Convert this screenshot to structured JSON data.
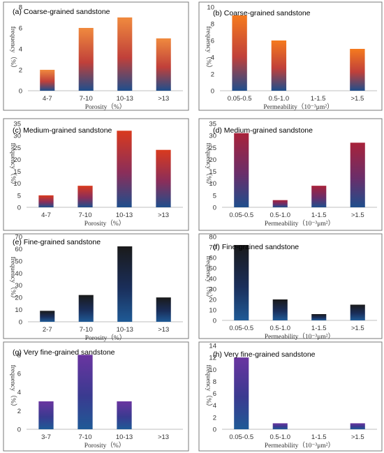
{
  "chart_data": [
    {
      "type": "bar",
      "panel": "(a)",
      "title": "Coarse-grained sandstone",
      "xlabel": "Porosity（%）",
      "ylabel": "frequency（%）",
      "categories": [
        "4-7",
        "7-10",
        "10-13",
        ">13"
      ],
      "values": [
        2,
        6,
        7,
        5
      ],
      "ylim": [
        0,
        8
      ],
      "yticks": [
        0,
        2,
        4,
        6,
        8
      ],
      "grid": false,
      "colors": [
        "#f08a3e",
        "#c0403a",
        "#1f4e8c"
      ]
    },
    {
      "type": "bar",
      "panel": "(b)",
      "title": "Coarse-grained sandstone",
      "xlabel": "Permeability（10⁻³μm²）",
      "ylabel": "frequency（%）",
      "categories": [
        "0.05-0.5",
        "0.5-1.0",
        "1-1.5",
        ">1.5"
      ],
      "values": [
        9,
        6,
        0,
        5
      ],
      "ylim": [
        0,
        10
      ],
      "yticks": [
        0,
        2,
        4,
        6,
        8,
        10
      ],
      "grid": false,
      "colors": [
        "#f57a1e",
        "#c0403a",
        "#1f4e8c"
      ]
    },
    {
      "type": "bar",
      "panel": "(c)",
      "title": "Medium-grained sandstone",
      "xlabel": "Porosity（%）",
      "ylabel": "frequency（%）",
      "categories": [
        "4-7",
        "7-10",
        "10-13",
        ">13"
      ],
      "values": [
        5,
        9,
        32,
        24
      ],
      "ylim": [
        0,
        35
      ],
      "yticks": [
        0,
        5,
        10,
        15,
        20,
        25,
        30,
        35
      ],
      "grid": false,
      "colors": [
        "#d93a1e",
        "#8a2e5a",
        "#1f4e8c"
      ]
    },
    {
      "type": "bar",
      "panel": "(d)",
      "title": "Medium-grained sandstone",
      "xlabel": "Permeability（10⁻³μm²）",
      "ylabel": "frequency（%）",
      "categories": [
        "0.05-0.5",
        "0.5-1.0",
        "1-1.5",
        ">1.5"
      ],
      "values": [
        31,
        3,
        9,
        27
      ],
      "ylim": [
        0,
        35
      ],
      "yticks": [
        0,
        5,
        10,
        15,
        20,
        25,
        30,
        35
      ],
      "grid": false,
      "colors": [
        "#a8223a",
        "#6a2e6a",
        "#1f4e8c"
      ]
    },
    {
      "type": "bar",
      "panel": "(e)",
      "title": "Fine-grained sandstone",
      "xlabel": "Porosity（%）",
      "ylabel": "frequency（%）",
      "categories": [
        "2-7",
        "7-10",
        "10-13",
        ">13"
      ],
      "values": [
        9,
        22,
        62,
        20
      ],
      "ylim": [
        0,
        70
      ],
      "yticks": [
        0,
        10,
        20,
        30,
        40,
        50,
        60,
        70
      ],
      "grid": false,
      "colors": [
        "#1a1a1a",
        "#1a2e5a",
        "#1f5a96"
      ]
    },
    {
      "type": "bar",
      "panel": "(f)",
      "title": "Fine-grained sandstone",
      "xlabel": "Permeability（10⁻³μm²）",
      "ylabel": "frequency（%）",
      "categories": [
        "0.05-0.5",
        "0.5-1.0",
        "1-1.5",
        ">1.5"
      ],
      "values": [
        72,
        20,
        6,
        15
      ],
      "ylim": [
        0,
        80
      ],
      "yticks": [
        0,
        10,
        20,
        30,
        40,
        50,
        60,
        70,
        80
      ],
      "grid": false,
      "colors": [
        "#1a1a1a",
        "#1a2e5a",
        "#1f5a96"
      ]
    },
    {
      "type": "bar",
      "panel": "(g)",
      "title": "Very fine-grained sandstone",
      "xlabel": "Porosity（%）",
      "ylabel": "frequency（%）",
      "categories": [
        "3-7",
        "7-10",
        "10-13",
        ">13"
      ],
      "values": [
        3,
        8,
        3,
        0
      ],
      "ylim": [
        0,
        9
      ],
      "yticks": [
        0,
        2,
        4,
        6,
        8
      ],
      "grid": false,
      "colors": [
        "#6a35a0",
        "#3a3a90",
        "#1f5a96"
      ]
    },
    {
      "type": "bar",
      "panel": "(h)",
      "title": "Very fine-grained sandstone",
      "xlabel": "Permeability（10⁻³μm²）",
      "ylabel": "frequency（%）",
      "categories": [
        "0.05-0.5",
        "0.5-1.0",
        "1-1.5",
        ">1.5"
      ],
      "values": [
        12,
        1,
        0,
        1
      ],
      "ylim": [
        0,
        14
      ],
      "yticks": [
        0,
        2,
        4,
        6,
        8,
        10,
        12,
        14
      ],
      "grid": false,
      "colors": [
        "#6a35a0",
        "#3a3a90",
        "#1f5a96"
      ]
    }
  ]
}
